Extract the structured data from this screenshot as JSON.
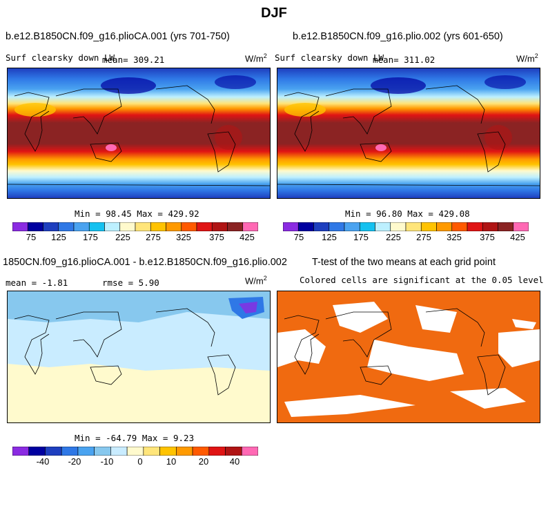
{
  "figure_title": "DJF",
  "chart_data": [
    {
      "type": "heatmap",
      "title": "b.e12.B1850CN.f09_g16.plioCA.001 (yrs 701-750)",
      "variable": "Surf clearsky down LW",
      "mean_label": "mean= 309.21",
      "units_label": "W/m",
      "units_exp": "2",
      "stats_label": "Min =  98.45 Max = 429.92",
      "min": 98.45,
      "max": 429.92,
      "mean": 309.21,
      "colorbar_ticks": [
        "75",
        "125",
        "175",
        "225",
        "275",
        "325",
        "375",
        "425"
      ]
    },
    {
      "type": "heatmap",
      "title": "b.e12.B1850CN.f09_g16.plio.002 (yrs 601-650)",
      "variable": "Surf clearsky down LW",
      "mean_label": "mean= 311.02",
      "units_label": "W/m",
      "units_exp": "2",
      "stats_label": "Min =  96.80 Max = 429.08",
      "min": 96.8,
      "max": 429.08,
      "mean": 311.02,
      "colorbar_ticks": [
        "75",
        "125",
        "175",
        "225",
        "275",
        "325",
        "375",
        "425"
      ]
    },
    {
      "type": "heatmap",
      "title": "1850CN.f09_g16.plioCA.001 - b.e12.B1850CN.f09_g16.plio.002",
      "mean_label": "mean =  -1.81",
      "rmse_label": "rmse =   5.90",
      "units_label": "W/m",
      "units_exp": "2",
      "stats_label": "Min = -64.79 Max =   9.23",
      "min": -64.79,
      "max": 9.23,
      "mean": -1.81,
      "rmse": 5.9,
      "colorbar_ticks": [
        "-40",
        "-20",
        "-10",
        "0",
        "10",
        "20",
        "40"
      ]
    },
    {
      "type": "heatmap",
      "title": "T-test of the two means at each grid point",
      "subtitle": "Colored cells are significant at the 0.05 level"
    }
  ],
  "colors": {
    "abs_scale": [
      "#8b2be2",
      "#0000a0",
      "#1e3fbf",
      "#2f78e6",
      "#4aa3f0",
      "#14c1f0",
      "#bdf0ff",
      "#fffacd",
      "#ffe57a",
      "#ffc300",
      "#ff9a00",
      "#ff5a00",
      "#e01414",
      "#b01414",
      "#8b2323",
      "#ff69b4"
    ],
    "diff_scale": [
      "#8b2be2",
      "#0000a0",
      "#1e3fbf",
      "#2f78e6",
      "#4aa3f0",
      "#87c8ee",
      "#c9ecff",
      "#fffacd",
      "#ffe57a",
      "#ffc300",
      "#ff9a00",
      "#ff5a00",
      "#e01414",
      "#b01414",
      "#ff69b4"
    ],
    "signif": "#f06a10"
  }
}
